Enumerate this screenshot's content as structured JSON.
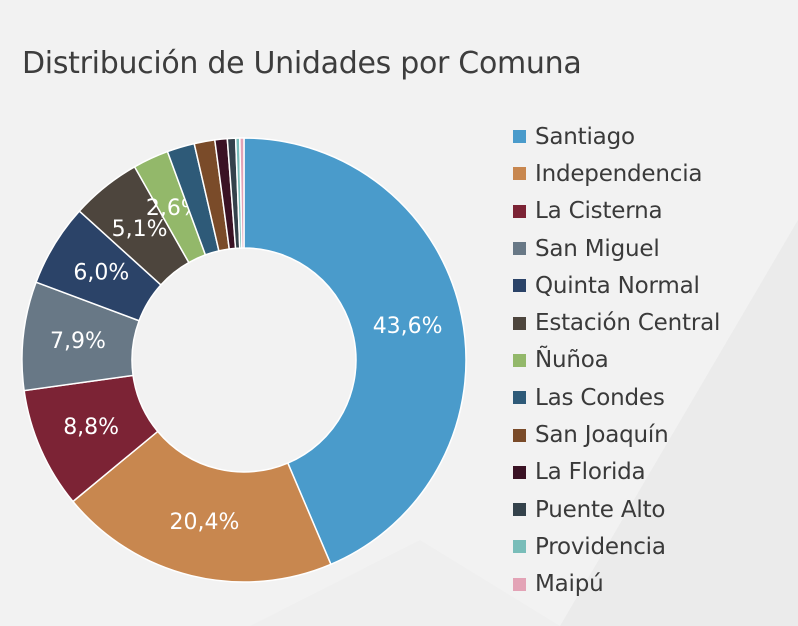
{
  "title": "Distribución de Unidades por Comuna",
  "chart_data": {
    "type": "pie",
    "title": "Distribución de Unidades por Comuna",
    "legend_position": "right",
    "hole": "donut",
    "slices": [
      {
        "name": "Santiago",
        "value": 43.6,
        "label": "43,6%",
        "color": "#4a9bcb"
      },
      {
        "name": "Independencia",
        "value": 20.4,
        "label": "20,4%",
        "color": "#c8874f"
      },
      {
        "name": "La Cisterna",
        "value": 8.8,
        "label": "8,8%",
        "color": "#7c2335"
      },
      {
        "name": "San Miguel",
        "value": 7.9,
        "label": "7,9%",
        "color": "#687886"
      },
      {
        "name": "Quinta Normal",
        "value": 6.0,
        "label": "6,0%",
        "color": "#2b4368"
      },
      {
        "name": "Estación Central",
        "value": 5.1,
        "label": "5,1%",
        "color": "#4d453d"
      },
      {
        "name": "Ñuñoa",
        "value": 2.6,
        "label": "2,6%",
        "color": "#93b86a"
      },
      {
        "name": "Las Condes",
        "value": 2.0,
        "label": "",
        "color": "#2e5a78"
      },
      {
        "name": "San Joaquín",
        "value": 1.5,
        "label": "",
        "color": "#7a4b29"
      },
      {
        "name": "La Florida",
        "value": 0.9,
        "label": "",
        "color": "#3a1224"
      },
      {
        "name": "Puente Alto",
        "value": 0.6,
        "label": "",
        "color": "#34424b"
      },
      {
        "name": "Providencia",
        "value": 0.3,
        "label": "",
        "color": "#79bdb9"
      },
      {
        "name": "Maipú",
        "value": 0.3,
        "label": "",
        "color": "#e3a3b6"
      }
    ]
  }
}
